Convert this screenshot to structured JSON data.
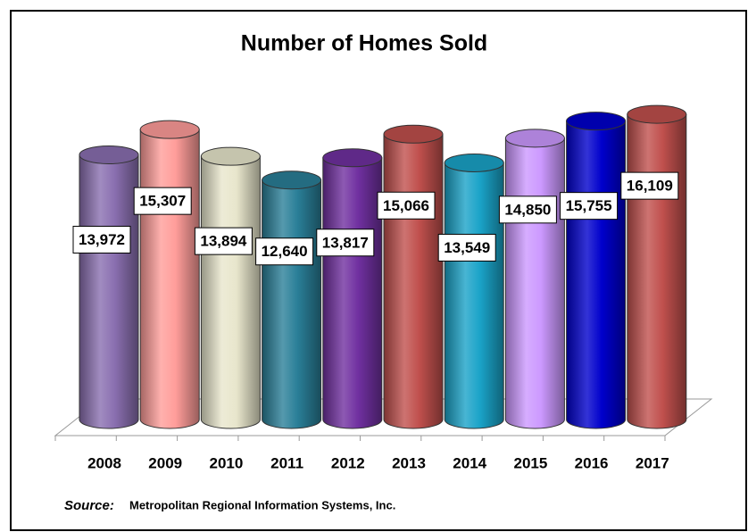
{
  "chart_data": {
    "type": "bar3d",
    "title": "Number of Homes Sold",
    "categories": [
      "2008",
      "2009",
      "2010",
      "2011",
      "2012",
      "2013",
      "2014",
      "2015",
      "2016",
      "2017"
    ],
    "values": [
      13972,
      15307,
      13894,
      12640,
      13817,
      15066,
      13549,
      14850,
      15755,
      16109
    ],
    "value_labels": [
      "13,972",
      "15,307",
      "13,894",
      "12,640",
      "13,817",
      "15,066",
      "13,549",
      "14,850",
      "15,755",
      "16,109"
    ],
    "colors": [
      "#8a6fb0",
      "#ff9d9a",
      "#e8e6cc",
      "#2a7f98",
      "#7030a0",
      "#c0504d",
      "#1aa3c8",
      "#cc99ff",
      "#0000cc",
      "#c0504d"
    ],
    "ylim": [
      0,
      18000
    ],
    "source_label": "Source:",
    "source": "Metropolitan Regional Information Systems, Inc."
  }
}
